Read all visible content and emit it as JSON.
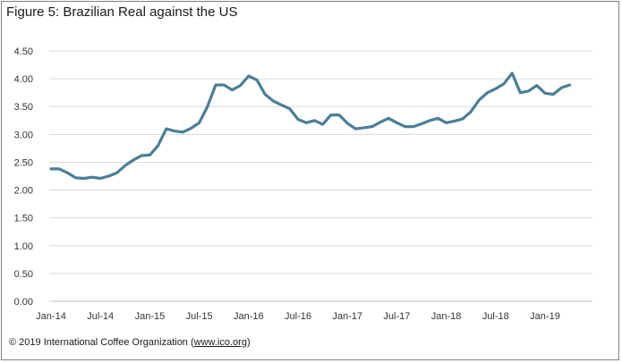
{
  "figure": {
    "title": "Figure 5: Brazilian Real against the US",
    "footer_prefix": "© 2019 International Coffee Organization (",
    "footer_link": "www.ico.org",
    "footer_suffix": ")"
  },
  "chart_data": {
    "type": "line",
    "title": "Figure 5: Brazilian Real against the US",
    "xlabel": "",
    "ylabel": "",
    "ylim": [
      0,
      4.5
    ],
    "yticks": [
      0.0,
      0.5,
      1.0,
      1.5,
      2.0,
      2.5,
      3.0,
      3.5,
      4.0,
      4.5
    ],
    "ytick_labels": [
      "0.00",
      "0.50",
      "1.00",
      "1.50",
      "2.00",
      "2.50",
      "3.00",
      "3.50",
      "4.00",
      "4.50"
    ],
    "xtick_labels": [
      "Jan-14",
      "Jul-14",
      "Jan-15",
      "Jul-15",
      "Jan-16",
      "Jul-16",
      "Jan-17",
      "Jul-17",
      "Jan-18",
      "Jul-18",
      "Jan-19"
    ],
    "xtick_month_index": [
      0,
      6,
      12,
      18,
      24,
      30,
      36,
      42,
      48,
      54,
      60
    ],
    "grid": "horizontal",
    "line_color": "#4a7f96",
    "x_start": "Jan-14",
    "x_end": "Mar-19",
    "values": [
      2.38,
      2.38,
      2.31,
      2.22,
      2.21,
      2.23,
      2.21,
      2.25,
      2.31,
      2.44,
      2.54,
      2.62,
      2.63,
      2.8,
      3.1,
      3.06,
      3.04,
      3.11,
      3.21,
      3.5,
      3.89,
      3.89,
      3.8,
      3.88,
      4.05,
      3.98,
      3.72,
      3.6,
      3.53,
      3.46,
      3.27,
      3.21,
      3.25,
      3.18,
      3.35,
      3.35,
      3.2,
      3.1,
      3.12,
      3.14,
      3.22,
      3.29,
      3.21,
      3.14,
      3.14,
      3.19,
      3.25,
      3.29,
      3.21,
      3.24,
      3.28,
      3.41,
      3.62,
      3.75,
      3.82,
      3.91,
      4.1,
      3.75,
      3.78,
      3.88,
      3.74,
      3.72,
      3.84,
      3.89
    ]
  }
}
